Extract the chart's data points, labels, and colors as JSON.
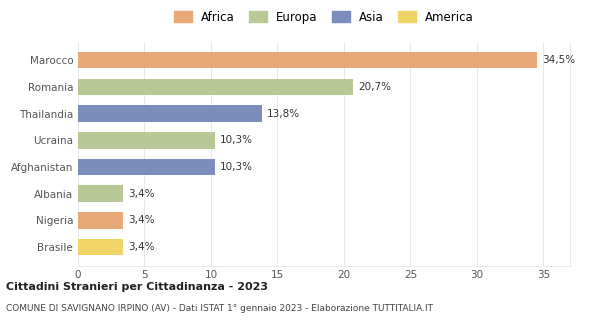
{
  "categories": [
    "Brasile",
    "Nigeria",
    "Albania",
    "Afghanistan",
    "Ucraina",
    "Thailandia",
    "Romania",
    "Marocco"
  ],
  "values": [
    3.4,
    3.4,
    3.4,
    10.3,
    10.3,
    13.8,
    20.7,
    34.5
  ],
  "labels": [
    "3,4%",
    "3,4%",
    "3,4%",
    "10,3%",
    "10,3%",
    "13,8%",
    "20,7%",
    "34,5%"
  ],
  "colors": [
    "#f0d468",
    "#e8a878",
    "#b8c896",
    "#7b8dba",
    "#b8c896",
    "#7b8dba",
    "#b8c896",
    "#e8a878"
  ],
  "legend": [
    {
      "label": "Africa",
      "color": "#e8a878"
    },
    {
      "label": "Europa",
      "color": "#b8c896"
    },
    {
      "label": "Asia",
      "color": "#7b8dba"
    },
    {
      "label": "America",
      "color": "#f0d468"
    }
  ],
  "xlim": [
    0,
    37
  ],
  "xticks": [
    0,
    5,
    10,
    15,
    20,
    25,
    30,
    35
  ],
  "title_bold": "Cittadini Stranieri per Cittadinanza - 2023",
  "subtitle": "COMUNE DI SAVIGNANO IRPINO (AV) - Dati ISTAT 1° gennaio 2023 - Elaborazione TUTTITALIA.IT",
  "background_color": "#ffffff",
  "grid_color": "#e8e8e8"
}
